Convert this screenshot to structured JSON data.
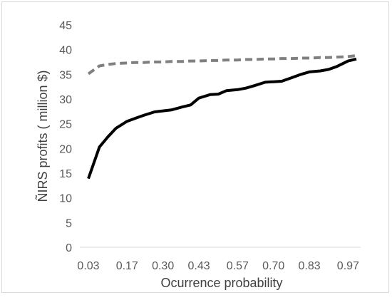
{
  "chart_data": {
    "type": "line",
    "title": "",
    "xlabel": "Ocurrence probability",
    "ylabel": "ÑIRS profits ( million $)",
    "x_tick_labels": [
      "0.03",
      "0.17",
      "0.30",
      "0.43",
      "0.57",
      "0.70",
      "0.83",
      "0.97"
    ],
    "x_tick_values": [
      0.03,
      0.17,
      0.3,
      0.43,
      0.57,
      0.7,
      0.83,
      0.97
    ],
    "ylim": [
      0,
      45
    ],
    "y_ticks": [
      0,
      5,
      10,
      15,
      20,
      25,
      30,
      35,
      40,
      45
    ],
    "xlim": [
      0.03,
      1.0
    ],
    "grid": false,
    "legend": "none",
    "x": [
      0.03,
      0.07,
      0.1,
      0.13,
      0.17,
      0.2,
      0.23,
      0.27,
      0.3,
      0.33,
      0.37,
      0.4,
      0.43,
      0.47,
      0.5,
      0.53,
      0.57,
      0.6,
      0.63,
      0.67,
      0.7,
      0.73,
      0.77,
      0.8,
      0.83,
      0.87,
      0.9,
      0.93,
      0.97,
      1.0
    ],
    "series": [
      {
        "color": "#000000",
        "style": "solid",
        "values": [
          13.9,
          20.3,
          22.3,
          24.1,
          25.5,
          26.1,
          26.7,
          27.4,
          27.6,
          27.8,
          28.4,
          28.8,
          30.2,
          30.9,
          31.0,
          31.7,
          31.9,
          32.2,
          32.7,
          33.4,
          33.5,
          33.6,
          34.4,
          35.0,
          35.5,
          35.7,
          36.0,
          36.6,
          37.7,
          38.1
        ]
      },
      {
        "color": "#808080",
        "style": "dashed",
        "values": [
          35.1,
          36.7,
          37.0,
          37.2,
          37.3,
          37.4,
          37.4,
          37.5,
          37.5,
          37.6,
          37.6,
          37.7,
          37.7,
          37.8,
          37.8,
          37.9,
          37.9,
          38.0,
          38.0,
          38.1,
          38.1,
          38.2,
          38.2,
          38.3,
          38.3,
          38.4,
          38.4,
          38.5,
          38.6,
          38.8
        ]
      }
    ]
  }
}
